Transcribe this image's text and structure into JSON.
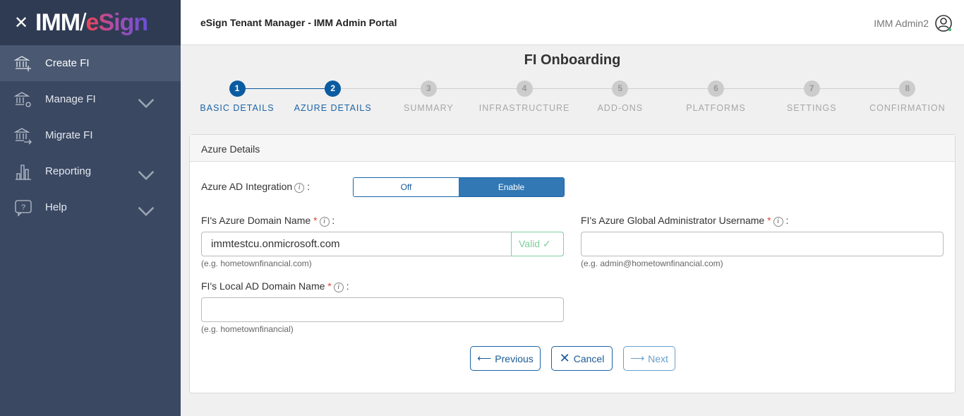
{
  "brand": {
    "imm": "IMM",
    "esign": "eSign"
  },
  "sidebar": {
    "items": [
      {
        "label": "Create FI",
        "icon": "bank-plus-icon",
        "active": true
      },
      {
        "label": "Manage FI",
        "icon": "bank-gear-icon",
        "expandable": true
      },
      {
        "label": "Migrate FI",
        "icon": "bank-arrow-icon"
      },
      {
        "label": "Reporting",
        "icon": "bar-chart-icon",
        "expandable": true
      },
      {
        "label": "Help",
        "icon": "help-bubble-icon",
        "expandable": true
      }
    ]
  },
  "header": {
    "title": "eSign Tenant Manager - IMM Admin Portal",
    "user": "IMM Admin2"
  },
  "page": {
    "title": "FI Onboarding"
  },
  "steps": [
    {
      "n": "1",
      "label": "BASIC DETAILS",
      "done": true
    },
    {
      "n": "2",
      "label": "AZURE DETAILS",
      "done": true
    },
    {
      "n": "3",
      "label": "SUMMARY"
    },
    {
      "n": "4",
      "label": "INFRASTRUCTURE"
    },
    {
      "n": "5",
      "label": "ADD-ONS"
    },
    {
      "n": "6",
      "label": "PLATFORMS"
    },
    {
      "n": "7",
      "label": "SETTINGS"
    },
    {
      "n": "8",
      "label": "CONFIRMATION"
    }
  ],
  "form": {
    "section": "Azure Details",
    "ad_integration": {
      "label": "Azure AD Integration",
      "off": "Off",
      "on": "Enable",
      "selected": "Enable"
    },
    "domain": {
      "label": "FI's Azure Domain Name",
      "value": "immtestcu.onmicrosoft.com",
      "status": "Valid",
      "hint": "(e.g. hometownfinancial.com)"
    },
    "admin": {
      "label": "FI's Azure Global Administrator Username",
      "value": "",
      "hint": "(e.g. admin@hometownfinancial.com)"
    },
    "local": {
      "label": "FI's Local AD Domain Name",
      "value": "",
      "hint": "(e.g. hometownfinancial)"
    },
    "colon": ":",
    "required": "*",
    "info": "i",
    "check": "✓"
  },
  "buttons": {
    "previous": "Previous",
    "cancel": "Cancel",
    "next": "Next"
  },
  "colors": {
    "primary": "#1b64a6",
    "sidebar": "#3a4862",
    "valid": "#7fcf9a"
  }
}
